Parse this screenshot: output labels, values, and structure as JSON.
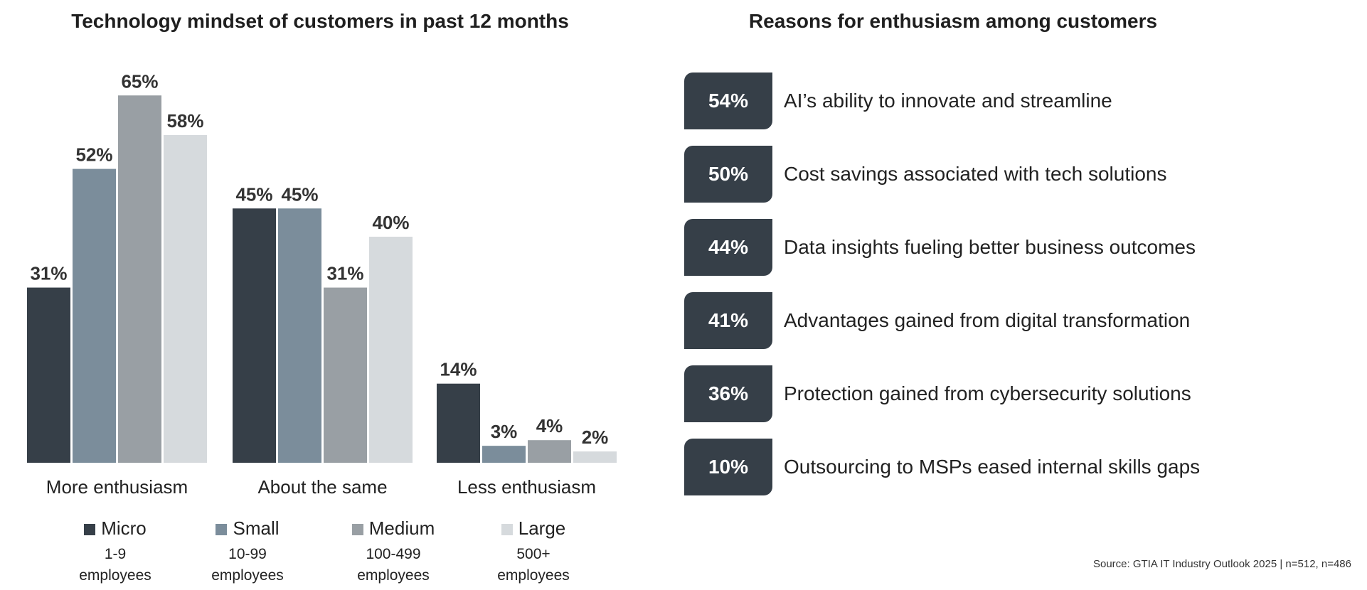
{
  "left_title": "Technology mindset of customers in past 12 months",
  "right_title": "Reasons for enthusiasm among customers",
  "chart_data": {
    "type": "bar",
    "categories": [
      "More enthusiasm",
      "About the same",
      "Less enthusiasm"
    ],
    "series": [
      {
        "name": "Micro",
        "sub1": "1-9",
        "sub2": "employees",
        "color": "#363f48",
        "values": [
          31,
          45,
          14
        ]
      },
      {
        "name": "Small",
        "sub1": "10-99",
        "sub2": "employees",
        "color": "#7b8d9b",
        "values": [
          52,
          45,
          3
        ]
      },
      {
        "name": "Medium",
        "sub1": "100-499",
        "sub2": "employees",
        "color": "#999fa4",
        "values": [
          65,
          31,
          4
        ]
      },
      {
        "name": "Large",
        "sub1": "500+",
        "sub2": "employees",
        "color": "#d6dadd",
        "values": [
          58,
          40,
          2
        ]
      }
    ],
    "value_suffix": "%",
    "ylim": [
      0,
      65
    ],
    "grid": false,
    "legend_position": "bottom"
  },
  "reasons": [
    {
      "value": "54%",
      "label": "AI’s ability to innovate and streamline"
    },
    {
      "value": "50%",
      "label": "Cost savings associated with tech solutions"
    },
    {
      "value": "44%",
      "label": "Data insights fueling better business outcomes"
    },
    {
      "value": "41%",
      "label": "Advantages gained from digital transformation"
    },
    {
      "value": "36%",
      "label": "Protection gained from cybersecurity solutions"
    },
    {
      "value": "10%",
      "label": "Outsourcing to MSPs eased internal skills gaps"
    }
  ],
  "source": "Source: GTIA IT Industry Outlook 2025 | n=512, n=486",
  "colors": {
    "badge": "#363f48"
  }
}
